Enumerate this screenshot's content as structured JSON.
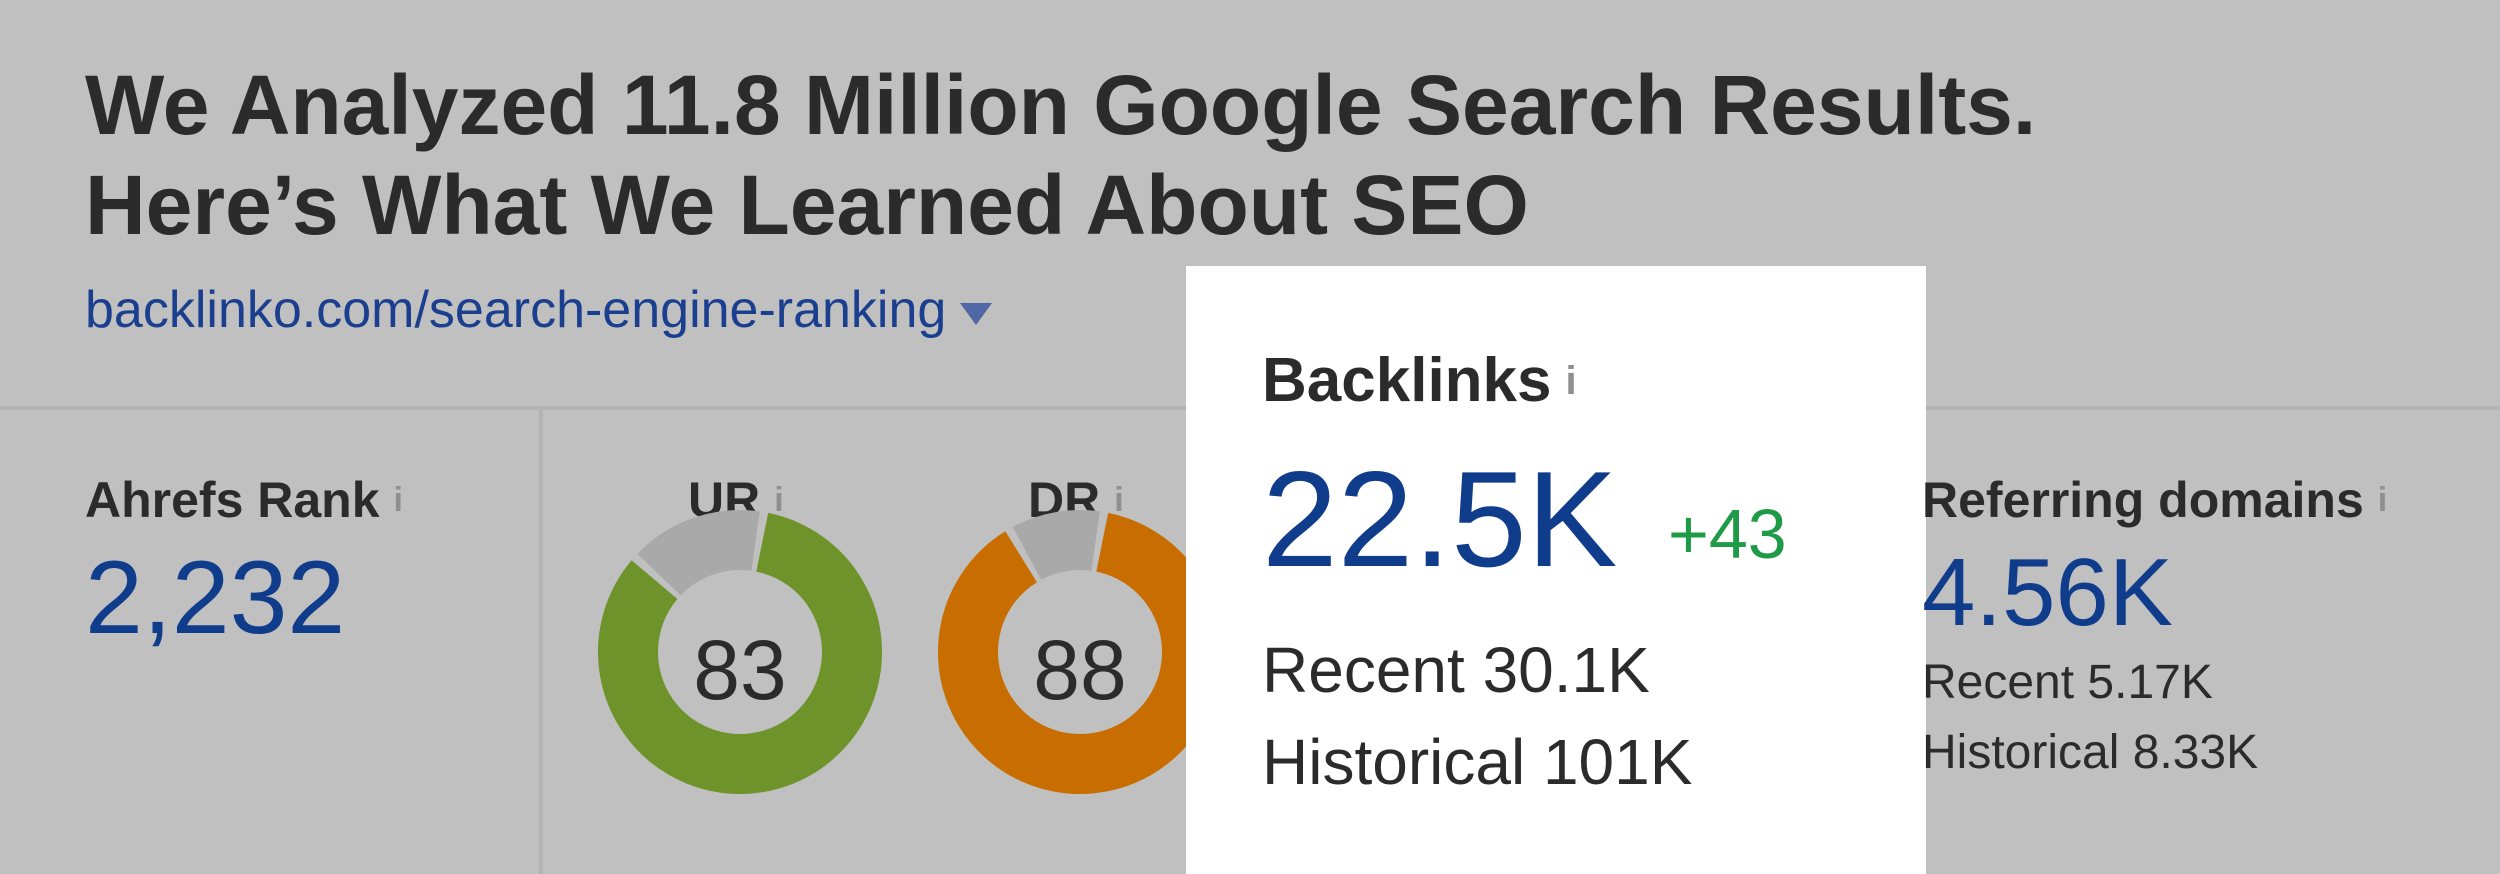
{
  "article": {
    "title_line1": "We Analyzed 11.8 Million Google Search Results.",
    "title_line2": "Here’s What We Learned About SEO",
    "url": "backlinko.com/search-engine-ranking"
  },
  "ahrefs_rank": {
    "label": "Ahrefs Rank",
    "value": "2,232"
  },
  "ur": {
    "label": "UR",
    "value": "83",
    "fraction": 0.83,
    "color": "#6f932b"
  },
  "dr": {
    "label": "DR",
    "value": "88",
    "fraction": 0.88,
    "color": "#c86d00"
  },
  "backlinks": {
    "label": "Backlinks",
    "value": "22.5K",
    "delta": "+43",
    "recent": "Recent 30.1K",
    "historical": "Historical 101K"
  },
  "referring_domains": {
    "label": "Referring domains",
    "value": "4.56K",
    "recent": "Recent 5.17K",
    "historical": "Historical 8.33K"
  },
  "info_glyph": "i"
}
